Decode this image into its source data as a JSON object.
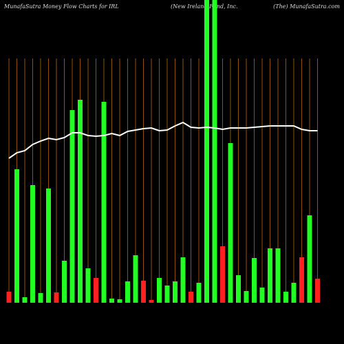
{
  "chart_data": {
    "type": "bar",
    "title": "MunafaSutra  Money Flow  Charts for IRL",
    "subtitle": "(New Ireland Fund, Inc.",
    "source": "(The) MunafaSutra.com",
    "categories": [
      null,
      null,
      null,
      null,
      null,
      null,
      null,
      null,
      null,
      null,
      null,
      null,
      null,
      null,
      null,
      null,
      null,
      null,
      null,
      null,
      null,
      null,
      null,
      null,
      null,
      null,
      null,
      null,
      null,
      null,
      null,
      null,
      null,
      null,
      null,
      null,
      null,
      null,
      null,
      null
    ],
    "values": [
      16,
      194,
      8,
      171,
      14,
      166,
      15,
      61,
      280,
      295,
      50,
      36,
      292,
      6,
      5,
      31,
      69,
      32,
      4,
      36,
      25,
      31,
      66,
      16,
      29,
      460,
      460,
      82,
      232,
      40,
      17,
      65,
      22,
      79,
      79,
      16,
      29,
      66,
      127,
      35
    ],
    "colors": [
      "#ff2020",
      "#22ff22",
      "#22ff22",
      "#22ff22",
      "#22ff22",
      "#22ff22",
      "#ff2020",
      "#22ff22",
      "#22ff22",
      "#22ff22",
      "#22ff22",
      "#ff2020",
      "#22ff22",
      "#22ff22",
      "#22ff22",
      "#22ff22",
      "#22ff22",
      "#ff2020",
      "#ff2020",
      "#22ff22",
      "#22ff22",
      "#22ff22",
      "#22ff22",
      "#ff2020",
      "#22ff22",
      "#22ff22",
      "#22ff22",
      "#ff2020",
      "#22ff22",
      "#22ff22",
      "#22ff22",
      "#22ff22",
      "#22ff22",
      "#22ff22",
      "#22ff22",
      "#22ff22",
      "#22ff22",
      "#ff2020",
      "#22ff22",
      "#ff2020"
    ],
    "line": {
      "color": "#ffffff",
      "values": [
        210,
        218,
        221,
        230,
        235,
        239,
        237,
        240,
        247,
        247,
        243,
        242,
        243,
        246,
        243,
        249,
        251,
        253,
        254,
        250,
        251,
        257,
        262,
        255,
        254,
        255,
        254,
        252,
        254,
        254,
        254,
        255,
        256,
        257,
        257,
        257,
        257,
        252,
        250,
        250
      ]
    },
    "ylim": [
      0,
      440
    ],
    "grid_color": "#b8660b"
  }
}
